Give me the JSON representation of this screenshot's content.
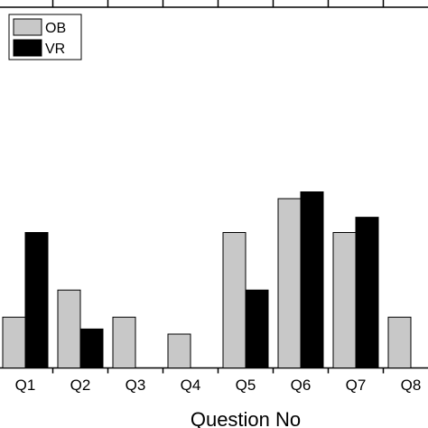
{
  "chart_data": {
    "type": "bar",
    "categories": [
      "Q1",
      "Q2",
      "Q3",
      "Q4",
      "Q5",
      "Q6",
      "Q7",
      "Q8"
    ],
    "series": [
      {
        "name": "OB",
        "values": [
          1.5,
          2.3,
          1.5,
          1.0,
          4.0,
          5.0,
          4.0,
          1.5
        ],
        "color": "#c8c8c8"
      },
      {
        "name": "VR",
        "values": [
          4.0,
          1.15,
          0,
          0,
          2.3,
          5.2,
          4.45,
          0
        ],
        "color": "#000000"
      }
    ],
    "xlabel": "Question No",
    "ylim": [
      0,
      7.5
    ],
    "legend": "top-left",
    "grid": false
  }
}
